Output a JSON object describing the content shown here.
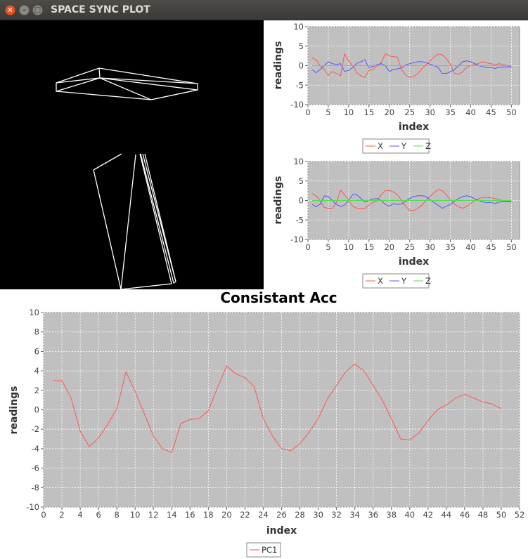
{
  "window": {
    "title": "SPACE SYNC PLOT",
    "close_glyph": "×",
    "minimize_glyph": "–",
    "maximize_glyph": "□"
  },
  "scene": {
    "background": "#000000",
    "stroke": "#ffffff",
    "icon": "wireframe-3d-view"
  },
  "colors": {
    "plot_bg": "#c0c0c0",
    "grid": "#ffffff",
    "x": "#ff5555",
    "y": "#5555ff",
    "z": "#55dd55",
    "pc1": "#ff5555"
  },
  "chart_data": [
    {
      "type": "line",
      "xlabel": "index",
      "ylabel": "readings",
      "xlim": [
        0,
        52
      ],
      "ylim": [
        -10,
        10
      ],
      "xticks": [
        0,
        5,
        10,
        15,
        20,
        25,
        30,
        35,
        40,
        45,
        50
      ],
      "yticks": [
        -10,
        -5,
        0,
        5,
        10
      ],
      "legend_position": "bottom",
      "series": [
        {
          "name": "X",
          "x": [
            1,
            2,
            3,
            4,
            5,
            6,
            7,
            8,
            9,
            10,
            11,
            12,
            13,
            14,
            15,
            16,
            17,
            18,
            19,
            20,
            21,
            22,
            23,
            24,
            25,
            26,
            27,
            28,
            29,
            30,
            31,
            32,
            33,
            34,
            35,
            36,
            37,
            38,
            39,
            40,
            41,
            42,
            43,
            44,
            45,
            46,
            47,
            48,
            49,
            50
          ],
          "values": [
            2,
            1.5,
            0,
            -1,
            -2.5,
            -1.5,
            -2,
            -2.6,
            3,
            1.2,
            0,
            -1.8,
            -2.6,
            -3,
            -1.2,
            -1,
            0,
            0.8,
            3,
            2.5,
            2.3,
            2.2,
            -1,
            -2.4,
            -3,
            -2.8,
            -2,
            -0.8,
            0.2,
            1.2,
            2.2,
            3,
            2.8,
            1.8,
            0.4,
            -2,
            -2.2,
            -1.6,
            -0.4,
            0,
            0.3,
            0.6,
            1,
            0.7,
            0.5,
            0.2,
            0.5,
            0.2,
            0,
            -0.4
          ],
          "color": "#ff5555"
        },
        {
          "name": "Y",
          "x": [
            1,
            2,
            3,
            4,
            5,
            6,
            7,
            8,
            9,
            10,
            11,
            12,
            13,
            14,
            15,
            16,
            17,
            18,
            19,
            20,
            21,
            22,
            23,
            24,
            25,
            26,
            27,
            28,
            29,
            30,
            31,
            32,
            33,
            34,
            35,
            36,
            37,
            38,
            39,
            40,
            41,
            42,
            43,
            44,
            45,
            46,
            47,
            48,
            49,
            50
          ],
          "values": [
            -1,
            -1.8,
            -1,
            0,
            1,
            0.5,
            0.3,
            0.5,
            -1.5,
            -1.2,
            -0.5,
            0.6,
            1,
            1.5,
            -0.5,
            -0.2,
            0.2,
            0.5,
            0,
            -1.5,
            -1,
            -0.8,
            -0.6,
            0.2,
            0.5,
            0.8,
            1,
            1,
            0.8,
            0.4,
            0,
            -0.5,
            -2,
            -2,
            -1.6,
            -1,
            0,
            1,
            1.2,
            1,
            0.5,
            0,
            -0.3,
            -0.5,
            -0.5,
            -0.7,
            -0.4,
            -0.3,
            -0.3,
            -0.2
          ],
          "color": "#5555ff"
        },
        {
          "name": "Z",
          "x": [
            1,
            5,
            10,
            15,
            20,
            25,
            30,
            35,
            40,
            45,
            50
          ],
          "values": [
            0,
            0,
            0,
            0,
            0,
            0,
            0,
            0,
            0,
            0,
            0
          ],
          "color": "#55dd55"
        }
      ]
    },
    {
      "type": "line",
      "xlabel": "index",
      "ylabel": "readings",
      "xlim": [
        0,
        52
      ],
      "ylim": [
        -10,
        10
      ],
      "xticks": [
        0,
        5,
        10,
        15,
        20,
        25,
        30,
        35,
        40,
        45,
        50
      ],
      "yticks": [
        -10,
        -5,
        0,
        5,
        10
      ],
      "legend_position": "bottom",
      "series": [
        {
          "name": "X",
          "x": [
            1,
            2,
            3,
            4,
            5,
            6,
            7,
            8,
            9,
            10,
            11,
            12,
            13,
            14,
            15,
            16,
            17,
            18,
            19,
            20,
            21,
            22,
            23,
            24,
            25,
            26,
            27,
            28,
            29,
            30,
            31,
            32,
            33,
            34,
            35,
            36,
            37,
            38,
            39,
            40,
            41,
            42,
            43,
            44,
            45,
            46,
            47,
            48,
            49,
            50
          ],
          "values": [
            1.8,
            1.2,
            0,
            -1.8,
            -2,
            -2,
            -0.5,
            2.6,
            1.5,
            0,
            -1.5,
            -2,
            -2,
            -2,
            -1.2,
            -0.5,
            0,
            1.5,
            2.5,
            2.6,
            2.2,
            1.5,
            0,
            -1.5,
            -2.5,
            -2.6,
            -2,
            -1.2,
            0,
            1,
            2,
            2.8,
            2.5,
            1.5,
            0.2,
            -1,
            -1.6,
            -2,
            -1.5,
            -0.8,
            0,
            0.5,
            0.8,
            0.8,
            0.7,
            0.5,
            0.2,
            -0.2,
            -0.3,
            -0.3
          ],
          "color": "#ff5555"
        },
        {
          "name": "Y",
          "x": [
            1,
            2,
            3,
            4,
            5,
            6,
            7,
            8,
            9,
            10,
            11,
            12,
            13,
            14,
            15,
            16,
            17,
            18,
            19,
            20,
            21,
            22,
            23,
            24,
            25,
            26,
            27,
            28,
            29,
            30,
            31,
            32,
            33,
            34,
            35,
            36,
            37,
            38,
            39,
            40,
            41,
            42,
            43,
            44,
            45,
            46,
            47,
            48,
            49,
            50
          ],
          "values": [
            -1,
            -1.6,
            -1,
            1.2,
            1,
            0,
            -1,
            -1.5,
            -1.2,
            0,
            1.6,
            1.5,
            0.5,
            -0.4,
            0,
            0.4,
            0.5,
            0,
            -1,
            -1.5,
            -0.8,
            -1,
            -0.9,
            -0.2,
            0.5,
            1,
            1.2,
            1.2,
            1,
            0.2,
            -0.5,
            -1.2,
            -2,
            -1.5,
            -1,
            -0.2,
            0.5,
            1,
            1.2,
            1,
            0.4,
            0,
            -0.4,
            -0.6,
            -0.5,
            -0.8,
            -0.4,
            -0.2,
            -0.2,
            -0.2
          ],
          "color": "#5555ff"
        },
        {
          "name": "Z",
          "x": [
            1,
            5,
            10,
            15,
            20,
            25,
            30,
            35,
            40,
            45,
            50
          ],
          "values": [
            0,
            0,
            0,
            0,
            0,
            0,
            0,
            0,
            0,
            0,
            0
          ],
          "color": "#55dd55"
        }
      ]
    },
    {
      "type": "line",
      "title": "Consistant Acc",
      "xlabel": "index",
      "ylabel": "readings",
      "xlim": [
        0,
        52
      ],
      "ylim": [
        -10,
        10
      ],
      "xticks": [
        0,
        2,
        4,
        6,
        8,
        10,
        12,
        14,
        16,
        18,
        20,
        22,
        24,
        26,
        28,
        30,
        32,
        34,
        36,
        38,
        40,
        42,
        44,
        46,
        48,
        50,
        52
      ],
      "yticks": [
        -10,
        -8,
        -6,
        -4,
        -2,
        0,
        2,
        4,
        6,
        8,
        10
      ],
      "legend_position": "bottom",
      "series": [
        {
          "name": "PC1",
          "x": [
            1,
            2,
            3,
            4,
            5,
            6,
            7,
            8,
            9,
            10,
            11,
            12,
            13,
            14,
            15,
            16,
            17,
            18,
            19,
            20,
            21,
            22,
            23,
            24,
            25,
            26,
            27,
            28,
            29,
            30,
            31,
            32,
            33,
            34,
            35,
            36,
            37,
            38,
            39,
            40,
            41,
            42,
            43,
            44,
            45,
            46,
            47,
            48,
            49,
            50
          ],
          "values": [
            3,
            3,
            1.2,
            -2.2,
            -3.8,
            -2.9,
            -1.5,
            0.1,
            3.9,
            1.9,
            -0.4,
            -2.7,
            -4,
            -4.4,
            -1.4,
            -1.0,
            -0.9,
            -0.1,
            2.3,
            4.5,
            3.7,
            3.3,
            2.4,
            -0.9,
            -2.7,
            -4,
            -4.2,
            -3.5,
            -2.3,
            -0.9,
            1.1,
            2.5,
            3.9,
            4.7,
            4.0,
            2.5,
            1.0,
            -0.9,
            -3.0,
            -3.1,
            -2.4,
            -1.1,
            0,
            0.5,
            1.2,
            1.6,
            1.2,
            0.8,
            0.6,
            0.1
          ],
          "color": "#ff5555"
        }
      ]
    }
  ]
}
